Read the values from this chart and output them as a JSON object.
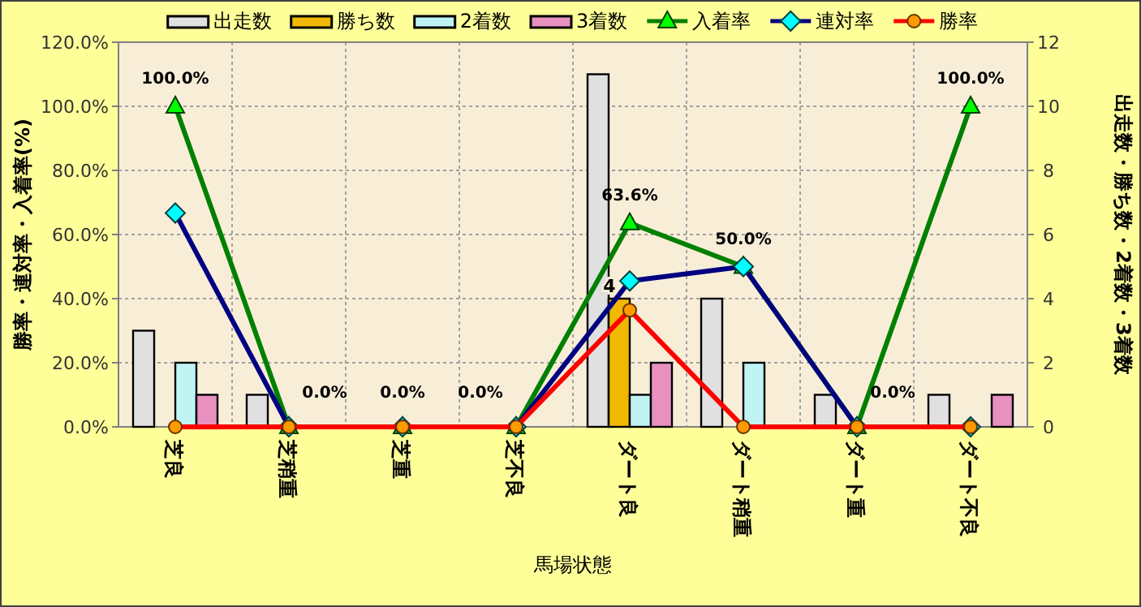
{
  "chart_data": {
    "type": "bar",
    "xlabel": "馬場状態",
    "ylabel": "勝率・連対率・入着率(%)",
    "y2label": "出走数・勝ち数・2着数・3着数",
    "categories": [
      "芝良",
      "芝稍重",
      "芝重",
      "芝不良",
      "ダート良",
      "ダート稍重",
      "ダート重",
      "ダート不良"
    ],
    "ylim": [
      0,
      120
    ],
    "yticks": [
      {
        "value": 0,
        "label": "0.0%"
      },
      {
        "value": 20,
        "label": "20.0%"
      },
      {
        "value": 40,
        "label": "40.0%"
      },
      {
        "value": 60,
        "label": "60.0%"
      },
      {
        "value": 80,
        "label": "80.0%"
      },
      {
        "value": 100,
        "label": "100.0%"
      },
      {
        "value": 120,
        "label": "120.0%"
      }
    ],
    "y2lim": [
      0,
      12
    ],
    "y2ticks": [
      0,
      2,
      4,
      6,
      8,
      10,
      12
    ],
    "grid": true,
    "legend": "top",
    "series": [
      {
        "name": "出走数",
        "axis": "y2",
        "color": "#e0e0e0",
        "values": [
          3,
          1,
          0,
          0,
          11,
          4,
          1,
          1
        ]
      },
      {
        "name": "勝ち数",
        "axis": "y2",
        "color": "#f0b800",
        "values": [
          0,
          0,
          0,
          0,
          4,
          0,
          0,
          0
        ],
        "value_labels": [
          null,
          null,
          null,
          null,
          "4",
          null,
          null,
          null
        ]
      },
      {
        "name": "2着数",
        "axis": "y2",
        "color": "#c0f4f4",
        "values": [
          2,
          0,
          0,
          0,
          1,
          2,
          0,
          0
        ]
      },
      {
        "name": "3着数",
        "axis": "y2",
        "color": "#e890c0",
        "values": [
          1,
          0,
          0,
          0,
          2,
          0,
          0,
          1
        ]
      },
      {
        "name": "入着率",
        "type": "line",
        "axis": "y",
        "color": "#008000",
        "marker": "triangle",
        "values": [
          100,
          0,
          0,
          0,
          63.6,
          50,
          0,
          100
        ],
        "value_labels": [
          "100.0%",
          "0.0%",
          "0.0%",
          "0.0%",
          "63.6%",
          "50.0%",
          "0.0%",
          "100.0%"
        ]
      },
      {
        "name": "連対率",
        "type": "line",
        "axis": "y",
        "color": "#000080",
        "marker": "diamond",
        "values": [
          66.7,
          0,
          0,
          0,
          45.5,
          50,
          0,
          0
        ]
      },
      {
        "name": "勝率",
        "type": "line",
        "axis": "y",
        "color": "#ff0000",
        "marker": "circle",
        "values": [
          0,
          0,
          0,
          0,
          36.4,
          0,
          0,
          0
        ]
      }
    ]
  }
}
